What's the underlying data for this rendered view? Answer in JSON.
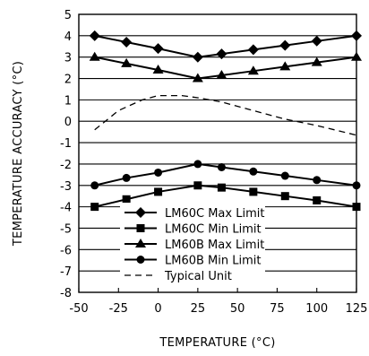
{
  "chart_data": {
    "type": "line",
    "xlabel": "TEMPERATURE (°C)",
    "ylabel": "TEMPERATURE ACCURACY (°C)",
    "xlim": [
      -50,
      125
    ],
    "ylim": [
      -8,
      5
    ],
    "xticks": [
      "-50",
      "-25",
      "0",
      "25",
      "50",
      "75",
      "100",
      "125"
    ],
    "yticks": [
      "5",
      "4",
      "3",
      "2",
      "1",
      "0",
      "-1",
      "-2",
      "-3",
      "-4",
      "-5",
      "-6",
      "-7",
      "-8"
    ],
    "grid": "horizontal",
    "legend_position": "bottom-center",
    "series": [
      {
        "name": "LM60C Max Limit",
        "marker": "diamond",
        "style": "solid",
        "x": [
          -40,
          -20,
          0,
          25,
          40,
          60,
          80,
          100,
          125
        ],
        "y": [
          4.0,
          3.7,
          3.4,
          3.0,
          3.15,
          3.35,
          3.55,
          3.75,
          4.0
        ]
      },
      {
        "name": "LM60C Min Limit",
        "marker": "square",
        "style": "solid",
        "x": [
          -40,
          -20,
          0,
          25,
          40,
          60,
          80,
          100,
          125
        ],
        "y": [
          -4.0,
          -3.65,
          -3.3,
          -3.0,
          -3.1,
          -3.3,
          -3.5,
          -3.7,
          -4.0
        ]
      },
      {
        "name": "LM60B Max Limit",
        "marker": "triangle",
        "style": "solid",
        "x": [
          -40,
          -20,
          0,
          25,
          40,
          60,
          80,
          100,
          125
        ],
        "y": [
          3.0,
          2.7,
          2.4,
          2.0,
          2.15,
          2.35,
          2.55,
          2.75,
          3.0
        ]
      },
      {
        "name": "LM60B Min Limit",
        "marker": "circle",
        "style": "solid",
        "x": [
          -40,
          -20,
          0,
          25,
          40,
          60,
          80,
          100,
          125
        ],
        "y": [
          -3.0,
          -2.65,
          -2.4,
          -2.0,
          -2.15,
          -2.35,
          -2.55,
          -2.75,
          -3.0
        ]
      },
      {
        "name": "Typical Unit",
        "marker": "none",
        "style": "dashed",
        "x": [
          -40,
          -25,
          -10,
          0,
          15,
          25,
          40,
          60,
          80,
          100,
          125
        ],
        "y": [
          -0.4,
          0.5,
          1.0,
          1.2,
          1.2,
          1.1,
          0.9,
          0.5,
          0.1,
          -0.2,
          -0.65
        ]
      }
    ]
  }
}
